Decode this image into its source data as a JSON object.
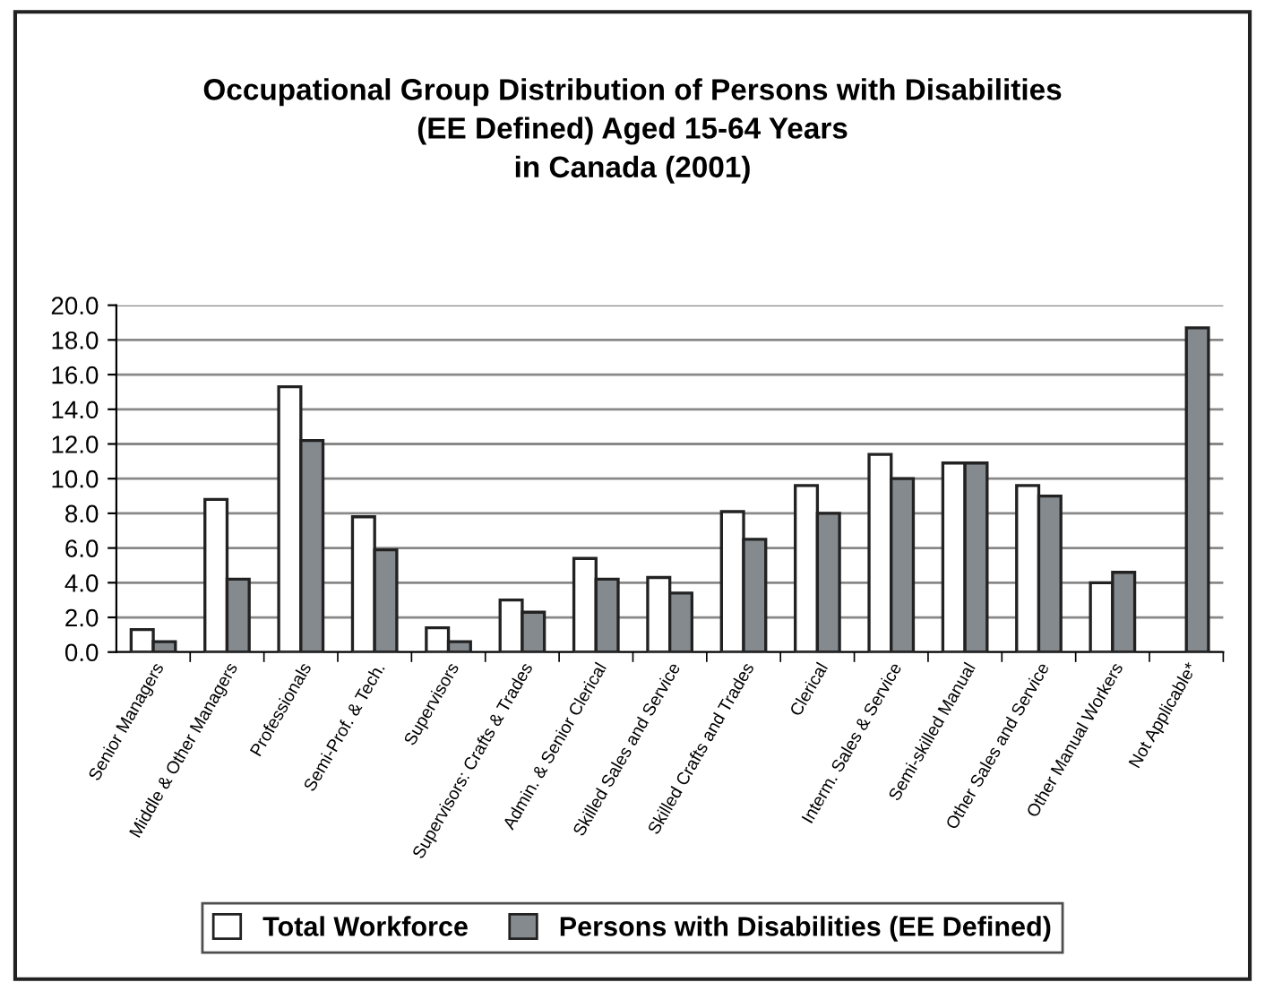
{
  "chart_data": {
    "type": "bar",
    "title": "Occupational Group Distribution of Persons with Disabilities\n(EE Defined) Aged 15-64 Years\nin Canada (2001)",
    "categories": [
      "Senior Managers",
      "Middle & Other Managers",
      "Professionals",
      "Semi-Prof. & Tech.",
      "Supervisors",
      "Supervisors: Crafts & Trades",
      "Admin. & Senior Clerical",
      "Skilled Sales and Service",
      "Skilled Crafts and Trades",
      "Clerical",
      "Interm. Sales & Service",
      "Semi-skilled Manual",
      "Other Sales and Service",
      "Other Manual Workers",
      "Not Applicable*"
    ],
    "series": [
      {
        "name": "Total Workforce",
        "color": "#ffffff",
        "values": [
          1.3,
          8.8,
          15.3,
          7.8,
          1.4,
          3.0,
          5.4,
          4.3,
          8.1,
          9.6,
          11.4,
          10.9,
          9.6,
          4.0,
          null
        ]
      },
      {
        "name": "Persons with Disabilities (EE Defined)",
        "color": "#858a8e",
        "values": [
          0.6,
          4.2,
          12.2,
          5.9,
          0.6,
          2.3,
          4.2,
          3.4,
          6.5,
          8.0,
          10.0,
          10.9,
          9.0,
          4.6,
          18.7
        ]
      }
    ],
    "ylim": [
      0,
      20
    ],
    "yticks": [
      {
        "value": 0,
        "label": "0.0"
      },
      {
        "value": 2,
        "label": "2.0"
      },
      {
        "value": 4,
        "label": "4.0"
      },
      {
        "value": 6,
        "label": "6.0"
      },
      {
        "value": 8,
        "label": "8.0"
      },
      {
        "value": 10,
        "label": "10.0"
      },
      {
        "value": 12,
        "label": "12.0"
      },
      {
        "value": 14,
        "label": "14.0"
      },
      {
        "value": 16,
        "label": "16.0"
      },
      {
        "value": 18,
        "label": "18.0"
      },
      {
        "value": 20,
        "label": "20.0"
      }
    ],
    "grid": "y",
    "legend": "bottom"
  }
}
